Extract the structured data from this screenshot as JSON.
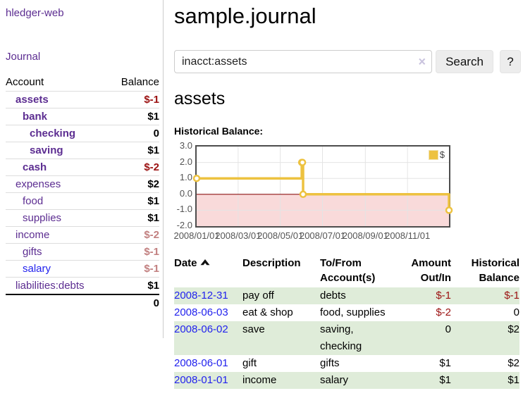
{
  "app": {
    "brand": "hledger-web"
  },
  "sidebar": {
    "journal_label": "Journal",
    "accounts": {
      "account_header": "Account",
      "balance_header": "Balance",
      "rows": [
        {
          "name": "assets",
          "depth": 1,
          "bold": true,
          "balance": "$-1",
          "tone": "neg-strong"
        },
        {
          "name": "bank",
          "depth": 2,
          "bold": true,
          "balance": "$1",
          "tone": ""
        },
        {
          "name": "checking",
          "depth": 3,
          "bold": true,
          "balance": "0",
          "tone": ""
        },
        {
          "name": "saving",
          "depth": 3,
          "bold": true,
          "balance": "$1",
          "tone": ""
        },
        {
          "name": "cash",
          "depth": 2,
          "bold": true,
          "balance": "$-2",
          "tone": "neg-strong"
        },
        {
          "name": "expenses",
          "depth": 1,
          "bold": false,
          "balance": "$2",
          "tone": ""
        },
        {
          "name": "food",
          "depth": 2,
          "bold": false,
          "balance": "$1",
          "tone": ""
        },
        {
          "name": "supplies",
          "depth": 2,
          "bold": false,
          "balance": "$1",
          "tone": ""
        },
        {
          "name": "income",
          "depth": 1,
          "bold": false,
          "balance": "$-2",
          "tone": "neg-soft"
        },
        {
          "name": "gifts",
          "depth": 2,
          "bold": false,
          "balance": "$-1",
          "tone": "neg-soft"
        },
        {
          "name": "salary",
          "depth": 2,
          "bold": false,
          "balance": "$-1",
          "tone": "neg-soft",
          "link_color": "blue"
        },
        {
          "name": "liabilities:debts",
          "depth": 1,
          "bold": false,
          "balance": "$1",
          "tone": ""
        }
      ],
      "total": "0"
    }
  },
  "main": {
    "title": "sample.journal",
    "search": {
      "value": "inacct:assets",
      "clear_icon": "×",
      "search_button": "Search",
      "help_button": "?"
    },
    "account_heading": "assets",
    "chart_section_label": "Historical Balance:"
  },
  "chart_data": {
    "type": "line",
    "style": "step",
    "title": "Historical Balance:",
    "series": [
      {
        "name": "$",
        "color": "#edc240",
        "points": [
          [
            "2008-01-01",
            1
          ],
          [
            "2008-06-01",
            2
          ],
          [
            "2008-06-02",
            2
          ],
          [
            "2008-06-03",
            0
          ],
          [
            "2008-12-31",
            -1
          ]
        ]
      }
    ],
    "xlim": [
      "2008-01-01",
      "2008-12-31"
    ],
    "ylim": [
      -2,
      3
    ],
    "x_ticks": [
      {
        "date": "2008-01-01",
        "label": "2008/01/01"
      },
      {
        "date": "2008-03-01",
        "label": "2008/03/01"
      },
      {
        "date": "2008-05-01",
        "label": "2008/05/01"
      },
      {
        "date": "2008-07-01",
        "label": "2008/07/01"
      },
      {
        "date": "2008-09-01",
        "label": "2008/09/01"
      },
      {
        "date": "2008-11-01",
        "label": "2008/11/01"
      }
    ],
    "y_ticks": [
      {
        "value": 3,
        "label": "3.0"
      },
      {
        "value": 2,
        "label": "2.0"
      },
      {
        "value": 1,
        "label": "1.0"
      },
      {
        "value": 0,
        "label": "0.0"
      },
      {
        "value": -1,
        "label": "-1.0"
      },
      {
        "value": -2,
        "label": "-2.0"
      }
    ],
    "grid": true,
    "legend": {
      "label": "$",
      "position": "top-right"
    },
    "zero_line_color": "#8e1515",
    "negative_region_fill": "#f9dada",
    "gridline_color": "#e4e4e4",
    "border_color": "#4d4d4d"
  },
  "register": {
    "headers": {
      "date": "Date",
      "description": "Description",
      "accounts": "To/From Account(s)",
      "amount": "Amount Out/In",
      "balance": "Historical Balance"
    },
    "sort": {
      "column": "date",
      "direction": "ascending"
    },
    "rows": [
      {
        "date": "2008-12-31",
        "description": "pay off",
        "accounts": "debts",
        "amount": "$-1",
        "amount_neg": true,
        "balance": "$-1",
        "balance_neg": true
      },
      {
        "date": "2008-06-03",
        "description": "eat & shop",
        "accounts": "food, supplies",
        "amount": "$-2",
        "amount_neg": true,
        "balance": "0",
        "balance_neg": false
      },
      {
        "date": "2008-06-02",
        "description": "save",
        "accounts": "saving, checking",
        "amount": "0",
        "amount_neg": false,
        "balance": "$2",
        "balance_neg": false
      },
      {
        "date": "2008-06-01",
        "description": "gift",
        "accounts": "gifts",
        "amount": "$1",
        "amount_neg": false,
        "balance": "$2",
        "balance_neg": false
      },
      {
        "date": "2008-01-01",
        "description": "income",
        "accounts": "salary",
        "amount": "$1",
        "amount_neg": false,
        "balance": "$1",
        "balance_neg": false
      }
    ]
  },
  "colors": {
    "link_purple": "#5c2d91",
    "link_blue": "#2222ee",
    "negative_strong": "#9b1111",
    "negative_soft": "#c28080",
    "row_green": "#dfecd9",
    "series_gold": "#edc240",
    "divider_gray": "#cccccc"
  }
}
